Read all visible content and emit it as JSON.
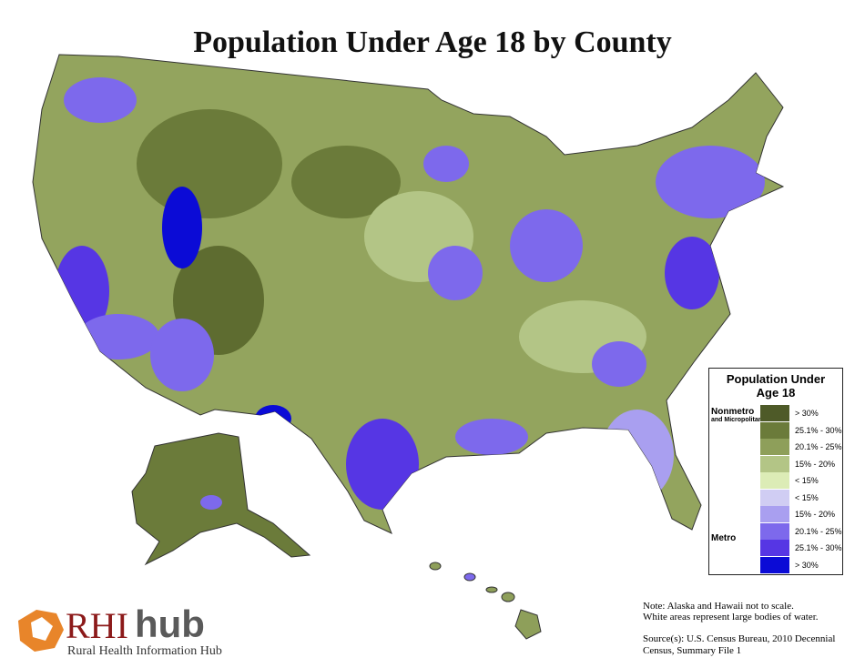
{
  "header": {
    "title": "Population Under Age 18 by County"
  },
  "legend": {
    "title": "Population Under Age 18",
    "groups": [
      {
        "label": "Nonmetro",
        "sublabel": "and Micropolitan",
        "items": [
          {
            "label": "> 30%",
            "color": "#4e5a28"
          },
          {
            "label": "25.1% - 30%",
            "color": "#6b7b3a"
          },
          {
            "label": "20.1% - 25%",
            "color": "#8e9f5a"
          },
          {
            "label": "15% - 20%",
            "color": "#b3c586"
          },
          {
            "label": "< 15%",
            "color": "#dcecb6"
          }
        ]
      },
      {
        "label": "Metro",
        "items": [
          {
            "label": "< 15%",
            "color": "#d0cdf3"
          },
          {
            "label": "15% - 20%",
            "color": "#a99ff0"
          },
          {
            "label": "20.1% - 25%",
            "color": "#7d69ec"
          },
          {
            "label": "25.1% - 30%",
            "color": "#5636e4"
          },
          {
            "label": "> 30%",
            "color": "#0b0bd6"
          }
        ]
      }
    ]
  },
  "notes": [
    "Note: Alaska and Hawaii not to scale.",
    "White areas represent large bodies of water."
  ],
  "source": "Source(s): U.S. Census Bureau, 2010 Decennial Census, Summary File 1",
  "logo": {
    "mark": "RHI",
    "word": "hub",
    "tagline": "Rural Health Information Hub"
  }
}
